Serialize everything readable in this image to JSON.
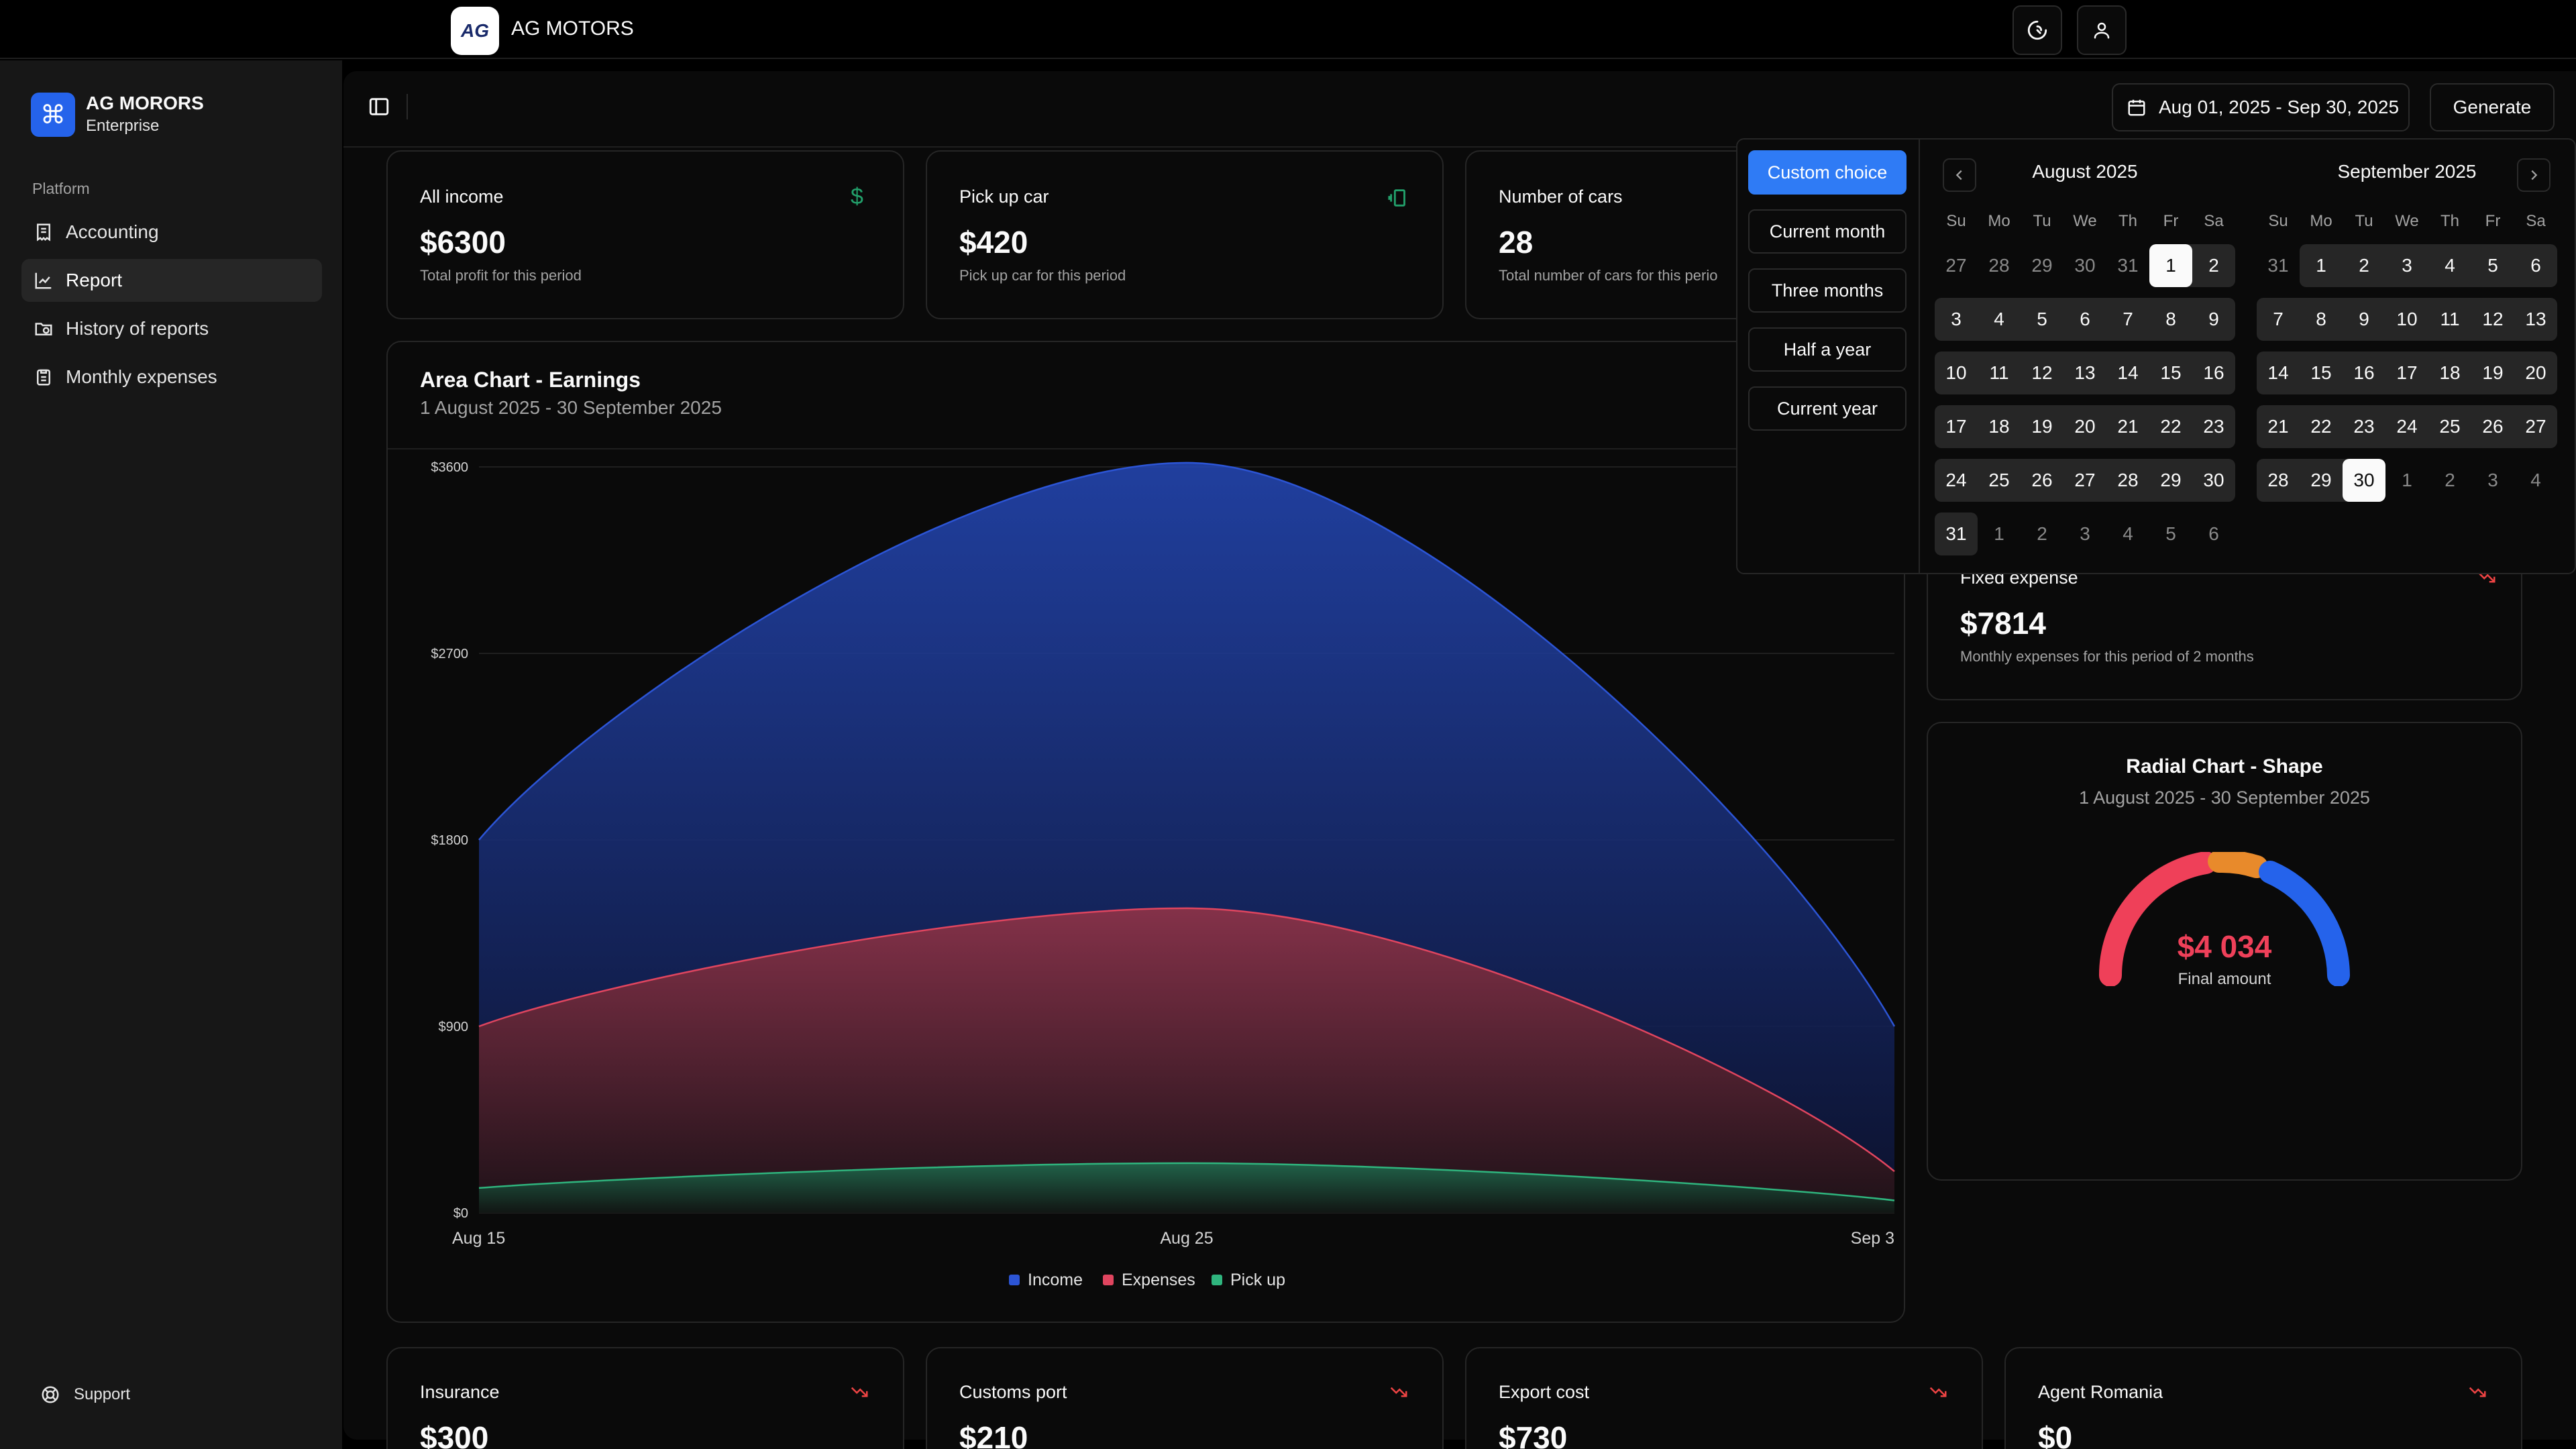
{
  "app": {
    "title": "AG MOTORS",
    "logo_text": "AG"
  },
  "topbar": {
    "theme_icon": "theme-toggle-icon",
    "user_icon": "user-icon"
  },
  "sidebar": {
    "org_name": "AG MORORS",
    "org_plan": "Enterprise",
    "section_label": "Platform",
    "items": [
      {
        "label": "Accounting",
        "icon": "receipt-icon",
        "active": false
      },
      {
        "label": "Report",
        "icon": "chart-icon",
        "active": true
      },
      {
        "label": "History of reports",
        "icon": "folder-clock-icon",
        "active": false
      },
      {
        "label": "Monthly expenses",
        "icon": "clipboard-icon",
        "active": false
      }
    ],
    "support_label": "Support"
  },
  "header": {
    "date_range": "Aug 01, 2025 - Sep 30, 2025",
    "generate_label": "Generate"
  },
  "stats": [
    {
      "title": "All income",
      "value": "$6300",
      "sub": "Total profit for this period",
      "icon": "dollar-icon"
    },
    {
      "title": "Pick up car",
      "value": "$420",
      "sub": "Pick up car for this period",
      "icon": "vibrate-icon"
    },
    {
      "title": "Number of cars",
      "value": "28",
      "sub": "Total number of cars for this perio"
    }
  ],
  "fixed_expense": {
    "title": "Fixed expense",
    "value": "$7814",
    "sub": "Monthly expenses for this period of 2 months"
  },
  "radial": {
    "title": "Radial Chart - Shape",
    "sub": "1 August 2025 - 30 September 2025",
    "value": "$4 034",
    "caption": "Final amount"
  },
  "bottom_cards": [
    {
      "title": "Insurance",
      "value": "$300"
    },
    {
      "title": "Customs port",
      "value": "$210"
    },
    {
      "title": "Export cost",
      "value": "$730"
    },
    {
      "title": "Agent Romania",
      "value": "$0"
    }
  ],
  "date_picker": {
    "presets": [
      "Custom choice",
      "Current month",
      "Three months",
      "Half a year",
      "Current year"
    ],
    "active_preset": 0,
    "weekdays": [
      "Su",
      "Mo",
      "Tu",
      "We",
      "Th",
      "Fr",
      "Sa"
    ],
    "months": [
      {
        "title": "August 2025",
        "weeks": [
          [
            "27",
            "28",
            "29",
            "30",
            "31",
            "1",
            "2"
          ],
          [
            "3",
            "4",
            "5",
            "6",
            "7",
            "8",
            "9"
          ],
          [
            "10",
            "11",
            "12",
            "13",
            "14",
            "15",
            "16"
          ],
          [
            "17",
            "18",
            "19",
            "20",
            "21",
            "22",
            "23"
          ],
          [
            "24",
            "25",
            "26",
            "27",
            "28",
            "29",
            "30"
          ],
          [
            "31",
            "1",
            "2",
            "3",
            "4",
            "5",
            "6"
          ]
        ]
      },
      {
        "title": "September 2025",
        "weeks": [
          [
            "31",
            "1",
            "2",
            "3",
            "4",
            "5",
            "6"
          ],
          [
            "7",
            "8",
            "9",
            "10",
            "11",
            "12",
            "13"
          ],
          [
            "14",
            "15",
            "16",
            "17",
            "18",
            "19",
            "20"
          ],
          [
            "21",
            "22",
            "23",
            "24",
            "25",
            "26",
            "27"
          ],
          [
            "28",
            "29",
            "30",
            "1",
            "2",
            "3",
            "4"
          ]
        ]
      }
    ]
  },
  "chart_data": {
    "type": "area",
    "title": "Area Chart - Earnings",
    "subtitle": "1 August 2025 - 30 September 2025",
    "x": [
      "Aug 15",
      "Aug 25",
      "Sep 3"
    ],
    "y_ticks": [
      "$3600",
      "$2700",
      "$1800",
      "$900",
      "$0"
    ],
    "ylim": [
      0,
      3600
    ],
    "series": [
      {
        "name": "Income",
        "color": "#2c55d6",
        "values": [
          1800,
          3620,
          900
        ]
      },
      {
        "name": "Expenses",
        "color": "#e0455f",
        "values": [
          900,
          1470,
          200
        ]
      },
      {
        "name": "Pick up",
        "color": "#2fb57e",
        "values": [
          120,
          240,
          60
        ]
      }
    ],
    "legend_position": "bottom"
  }
}
